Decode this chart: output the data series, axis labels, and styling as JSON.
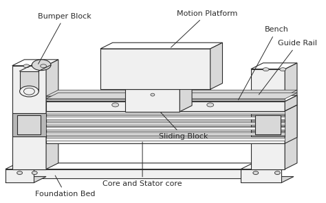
{
  "labels": {
    "bumper_block": "Bumper Block",
    "motion_platform": "Motion Platform",
    "bench": "Bench",
    "guide_rail": "Guide Rail",
    "sliding_block": "Sliding Block",
    "core_stator": "Core and Stator core",
    "foundation_bed": "Foundation Bed"
  },
  "bg_color": "#ffffff",
  "lc": "#2a2a2a",
  "fl": "#f0f0f0",
  "fm": "#d8d8d8",
  "fd": "#b8b8b8",
  "fw": "#ffffff"
}
